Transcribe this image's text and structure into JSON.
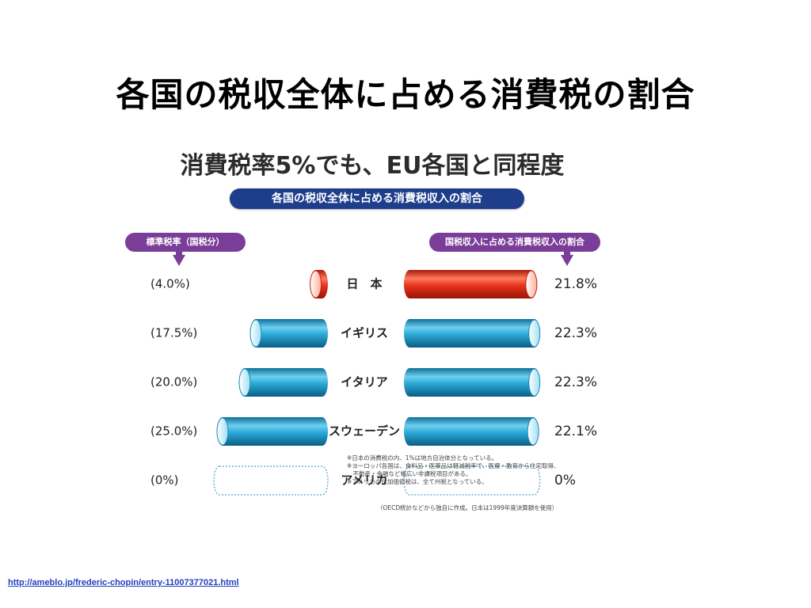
{
  "slide": {
    "title": "各国の税収全体に占める消費税の割合",
    "url": "http://ameblo.jp/frederic-chopin/entry-11007377021.html"
  },
  "chart_data": {
    "type": "bar",
    "headline": "消費税率5%でも、EU各国と同程度",
    "title": "各国の税収全体に占める消費税収入の割合",
    "left_series_label": "標準税率（国税分）",
    "right_series_label": "国税収入に占める消費税収入の割合",
    "categories": [
      "日　本",
      "イギリス",
      "イタリア",
      "スウェーデン",
      "アメリカ"
    ],
    "series": [
      {
        "name": "標準税率（国税分）",
        "values": [
          4.0,
          17.5,
          20.0,
          25.0,
          0
        ],
        "labels": [
          "(4.0%)",
          "(17.5%)",
          "(20.0%)",
          "(25.0%)",
          "(0%)"
        ]
      },
      {
        "name": "国税収入に占める消費税収入の割合",
        "values": [
          21.8,
          22.3,
          22.3,
          22.1,
          0
        ],
        "labels": [
          "21.8%",
          "22.3%",
          "22.3%",
          "22.1%",
          "0%"
        ]
      }
    ],
    "colors": {
      "japan": "#e8331c",
      "others": "#2aa8d6",
      "empty_outline": "#4aa7c8"
    },
    "notes": [
      "※日本の消費税の内、1%は地方自治体分となっている。",
      "※ヨーロッパ各国は、食料品・医薬品は軽減税率で、医療・教育から住宅取得、",
      "　不動産・金融など幅広い非課税項目がある。",
      "※アメリカの付加価値税は、全て州税となっている。"
    ],
    "source": "（OECD統計などから独自に作成。日本は1999年度決算額を使用）"
  }
}
